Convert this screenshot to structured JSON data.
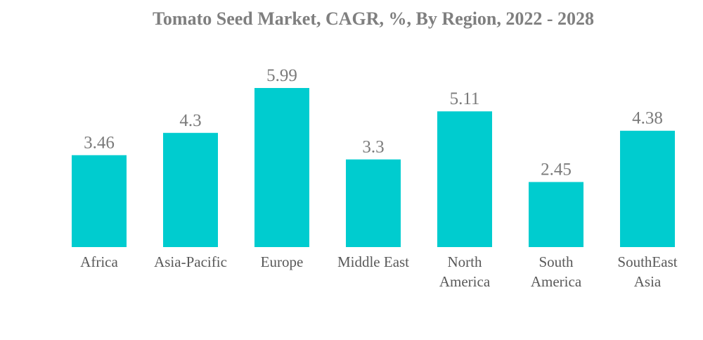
{
  "colors": {
    "bar": "#00cccf",
    "title": "#7f7f7f",
    "value_label": "#7a7a7a",
    "category_label": "#595959",
    "background": "#ffffff"
  },
  "chart_data": {
    "type": "bar",
    "title": "Tomato Seed Market, CAGR, %, By Region, 2022 - 2028",
    "xlabel": "",
    "ylabel": "",
    "categories": [
      "Africa",
      "Asia-Pacific",
      "Europe",
      "Middle East",
      "North America",
      "South America",
      "SouthEast Asia"
    ],
    "category_lines": [
      [
        "Africa"
      ],
      [
        "Asia-Pacific"
      ],
      [
        "Europe"
      ],
      [
        "Middle East"
      ],
      [
        "North",
        "America"
      ],
      [
        "South",
        "America"
      ],
      [
        "SouthEast",
        "Asia"
      ]
    ],
    "values": [
      3.46,
      4.3,
      5.99,
      3.3,
      5.11,
      2.45,
      4.38
    ],
    "value_labels": [
      "3.46",
      "4.3",
      "5.99",
      "3.3",
      "5.11",
      "2.45",
      "4.38"
    ],
    "ylim": [
      0,
      5.99
    ],
    "grid": false,
    "legend": "none",
    "data_labels": true
  }
}
